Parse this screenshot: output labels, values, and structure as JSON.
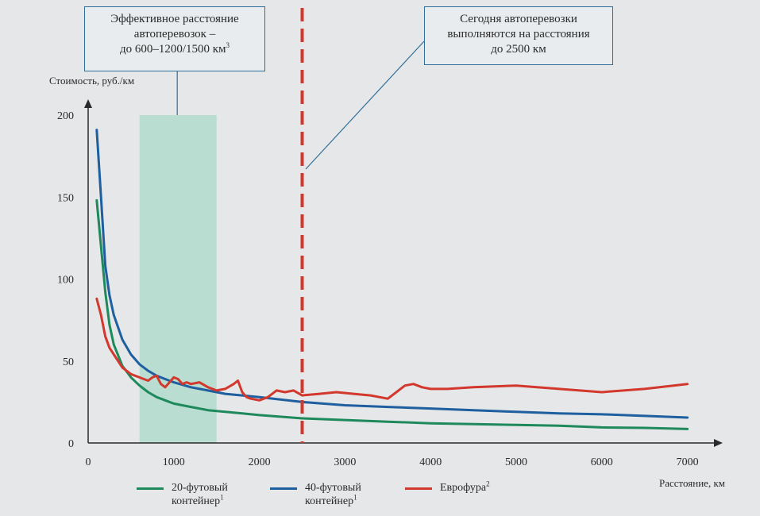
{
  "colors": {
    "c20": "#1e8a5c",
    "c40": "#1f5fa0",
    "euro": "#d2382d",
    "zone": "#b9ddd0",
    "marker": "#d2382d",
    "leader": "#2f6f9a",
    "axis": "#2a2a2a"
  },
  "callouts": {
    "left_text": "Эффективное расстояние\nавтоперевозок –\nдо 600–1200/1500 км",
    "left_sup": "3",
    "right_text": "Сегодня автоперевозки\nвыполняются на расстояния\nдо 2500 км"
  },
  "legend": [
    {
      "name": "20-футовый\nконтейнер",
      "sup": "1",
      "color": "#1e8a5c"
    },
    {
      "name": "40-футовый\nконтейнер",
      "sup": "1",
      "color": "#1f5fa0"
    },
    {
      "name": "Еврофура",
      "sup": "2",
      "color": "#d2382d"
    }
  ],
  "chart_data": {
    "type": "line",
    "ylabel": "Стоимость, руб./км",
    "xlabel": "Расстояние, км",
    "xlim": [
      0,
      7500
    ],
    "ylim": [
      0,
      200
    ],
    "xticks": [
      0,
      1000,
      2000,
      3000,
      4000,
      5000,
      6000,
      7000
    ],
    "yticks": [
      0,
      50,
      100,
      150,
      200
    ],
    "effective_zone": [
      600,
      1500
    ],
    "marker_line_x": 2500,
    "series": [
      {
        "name": "20-футовый контейнер",
        "color": "#1e8a5c",
        "x": [
          100,
          150,
          200,
          250,
          300,
          400,
          500,
          600,
          700,
          800,
          900,
          1000,
          1200,
          1400,
          1600,
          1800,
          2000,
          2500,
          3000,
          3500,
          4000,
          4500,
          5000,
          5500,
          6000,
          6500,
          7000
        ],
        "y": [
          148,
          120,
          92,
          72,
          60,
          47,
          40,
          35,
          31,
          28,
          26,
          24,
          22,
          20,
          19,
          18,
          17,
          15,
          14,
          13,
          12,
          11.5,
          11,
          10.5,
          9.5,
          9.2,
          8.5
        ]
      },
      {
        "name": "40-футовый контейнер",
        "color": "#1f5fa0",
        "x": [
          100,
          150,
          200,
          250,
          300,
          400,
          500,
          600,
          700,
          800,
          900,
          1000,
          1200,
          1400,
          1600,
          1800,
          2000,
          2500,
          3000,
          3500,
          4000,
          4500,
          5000,
          5500,
          6000,
          6500,
          7000
        ],
        "y": [
          191,
          150,
          108,
          90,
          78,
          63,
          54,
          48,
          44,
          41,
          39,
          37,
          34,
          32,
          30,
          29,
          28,
          25,
          23,
          22,
          21,
          20,
          19,
          18,
          17.5,
          16.5,
          15.5
        ]
      },
      {
        "name": "Еврофура",
        "color": "#d2382d",
        "x": [
          100,
          150,
          200,
          250,
          300,
          400,
          500,
          600,
          650,
          700,
          750,
          800,
          850,
          900,
          950,
          1000,
          1050,
          1100,
          1150,
          1200,
          1300,
          1400,
          1500,
          1600,
          1700,
          1750,
          1800,
          1850,
          1900,
          2000,
          2100,
          2200,
          2300,
          2400,
          2500,
          2700,
          2900,
          3100,
          3300,
          3500,
          3600,
          3700,
          3800,
          3900,
          4000,
          4200,
          4500,
          5000,
          5500,
          6000,
          6500,
          7000
        ],
        "y": [
          88,
          78,
          65,
          58,
          54,
          46,
          42,
          40,
          39,
          38,
          40,
          41,
          36,
          34,
          37,
          40,
          39,
          36,
          37,
          36,
          37,
          34,
          32,
          33,
          36,
          38,
          31,
          28,
          27,
          26,
          28,
          32,
          31,
          32,
          29,
          30,
          31,
          30,
          29,
          27,
          31,
          35,
          36,
          34,
          33,
          33,
          34,
          35,
          33,
          31,
          33,
          36
        ]
      }
    ]
  }
}
